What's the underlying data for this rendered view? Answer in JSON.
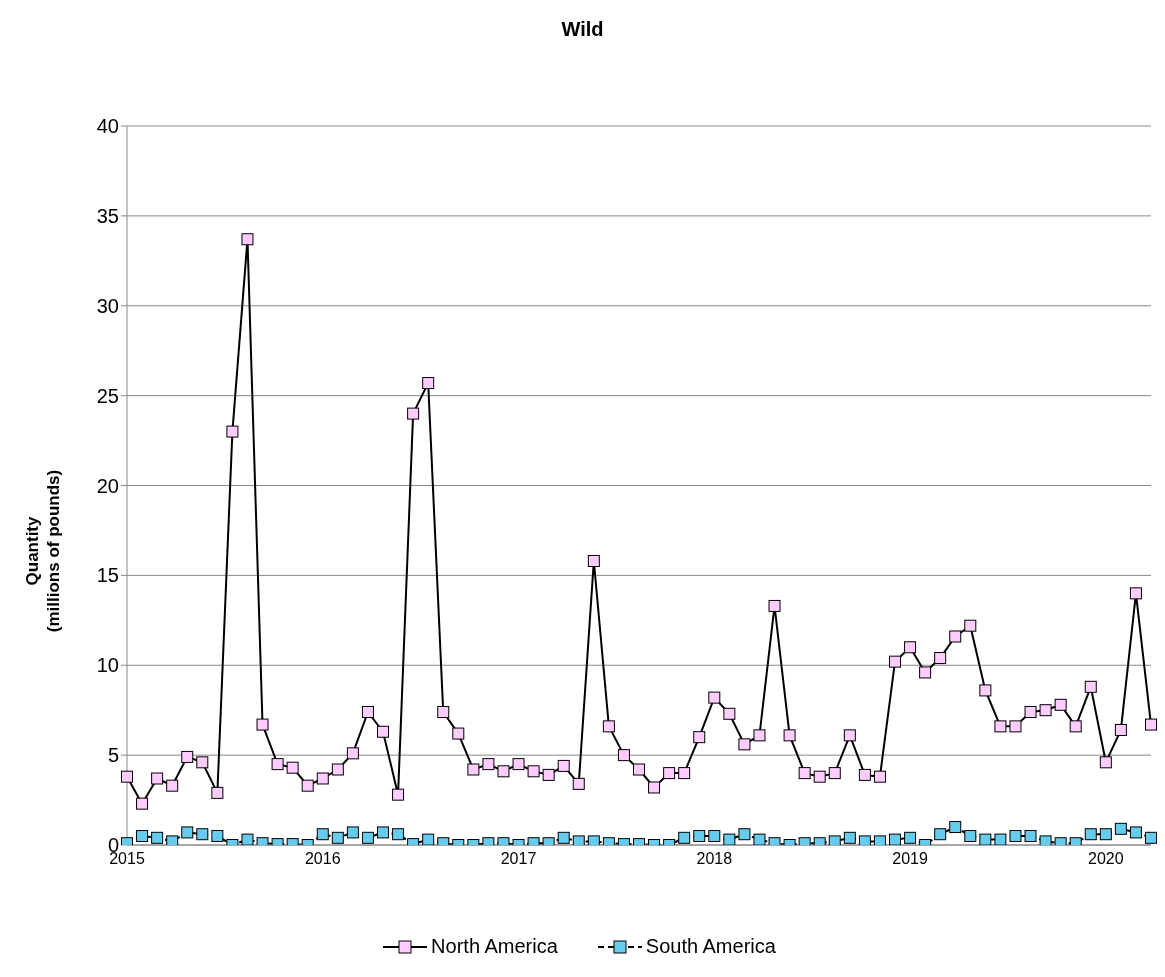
{
  "chart_data": {
    "type": "line",
    "title": "Wild",
    "ylabel": "Quantity\n(millions of pounds)",
    "categories": [
      "2015",
      null,
      null,
      null,
      null,
      null,
      null,
      null,
      null,
      null,
      null,
      null,
      null,
      "2016",
      null,
      null,
      null,
      null,
      null,
      null,
      null,
      null,
      null,
      null,
      null,
      null,
      "2017",
      null,
      null,
      null,
      null,
      null,
      null,
      null,
      null,
      null,
      null,
      null,
      null,
      "2018",
      null,
      null,
      null,
      null,
      null,
      null,
      null,
      null,
      null,
      null,
      null,
      null,
      "2019",
      null,
      null,
      null,
      null,
      null,
      null,
      null,
      null,
      null,
      null,
      null,
      null,
      "2020",
      null,
      null,
      null
    ],
    "series": [
      {
        "name": "North America",
        "color": "#ffccff",
        "line_style": "solid",
        "values": [
          3.8,
          2.3,
          3.7,
          3.3,
          4.9,
          4.6,
          2.9,
          23,
          33.7,
          6.7,
          4.5,
          4.3,
          3.3,
          3.7,
          4.2,
          5.1,
          7.4,
          6.3,
          2.8,
          24,
          25.7,
          7.4,
          6.2,
          4.2,
          4.5,
          4.1,
          4.5,
          4.1,
          3.9,
          4.4,
          3.4,
          15.8,
          6.6,
          5,
          4.2,
          3.2,
          4,
          4,
          6,
          8.2,
          7.3,
          5.6,
          6.1,
          13.3,
          6.1,
          4,
          3.8,
          4,
          6.1,
          3.9,
          3.8,
          10.2,
          11,
          9.6,
          10.4,
          11.6,
          12.2,
          8.6,
          6.6,
          6.6,
          7.4,
          7.5,
          7.8,
          6.6,
          8.8,
          4.6,
          6.4,
          14,
          6.7
        ]
      },
      {
        "name": "South America",
        "color": "#66ccee",
        "line_style": "dashed",
        "values": [
          0.1,
          0.5,
          0.4,
          0.2,
          0.7,
          0.6,
          0.5,
          0,
          0.3,
          0.1,
          0.05,
          0.05,
          0,
          0.6,
          0.4,
          0.7,
          0.4,
          0.7,
          0.6,
          0.05,
          0.3,
          0.1,
          0,
          0,
          0.1,
          0.1,
          0,
          0.1,
          0.1,
          0.4,
          0.2,
          0.2,
          0.1,
          0.05,
          0.05,
          0,
          0,
          0.4,
          0.5,
          0.5,
          0.3,
          0.6,
          0.3,
          0.1,
          0,
          0.1,
          0.1,
          0.2,
          0.4,
          0.2,
          0.2,
          0.3,
          0.4,
          0,
          0.6,
          1.0,
          0.5,
          0.3,
          0.3,
          0.5,
          0.5,
          0.2,
          0.1,
          0.1,
          0.6,
          0.6,
          0.9,
          0.7,
          0.4
        ]
      }
    ],
    "ylim": [
      0,
      40
    ],
    "yticks": [
      0,
      5,
      10,
      15,
      20,
      25,
      30,
      35,
      40
    ],
    "grid": "y",
    "legend": "bottom",
    "marker": "square"
  }
}
